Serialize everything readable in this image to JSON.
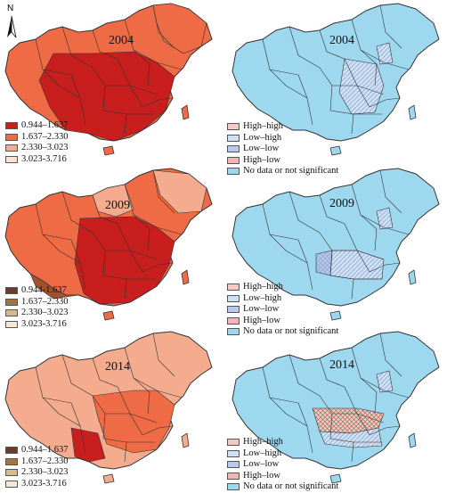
{
  "north_label": "N",
  "years": [
    "2004",
    "2009",
    "2014"
  ],
  "value_legend": {
    "2004": {
      "labels": [
        "0.944–1.637",
        "1.637–2.330",
        "2.330–3.023",
        "3.023-3.716"
      ],
      "colors": [
        "#c81e1e",
        "#ee6b45",
        "#f4ab8e",
        "#fbe1d6"
      ]
    },
    "2009": {
      "labels": [
        "0.944-1.637",
        "1.637–2.330",
        "2.330–3.023",
        "3.023-3.716"
      ],
      "colors": [
        "#6b3d22",
        "#a47445",
        "#d9b98e",
        "#f3e8da"
      ]
    },
    "2014": {
      "labels": [
        "0.944–1.637",
        "1.637–2.330",
        "2.330–3.023",
        "3.023-3.716"
      ],
      "colors": [
        "#6b3d22",
        "#a47445",
        "#d9b98e",
        "#f3e8da"
      ]
    }
  },
  "lisa_legend": {
    "labels": [
      "High–high",
      "Low–high",
      "Low–low",
      "High–low",
      "No data or not significant"
    ],
    "colors": [
      "#f6c9c9",
      "#cfe0f4",
      "#b9c8ec",
      "#f2b4b4",
      "#9ed8ef"
    ]
  },
  "map_colors": {
    "sea_background": "#ffffff",
    "border": "#333333",
    "lisa_base": "#9ed8ef",
    "value_2004": [
      "#c81e1e",
      "#ee6b45",
      "#f4ab8e"
    ],
    "value_2009": [
      "#c81e1e",
      "#ee6b45",
      "#f4ab8e",
      "#a0522d"
    ],
    "value_2014": [
      "#ee6b45",
      "#f4ab8e",
      "#c81e1e"
    ]
  }
}
